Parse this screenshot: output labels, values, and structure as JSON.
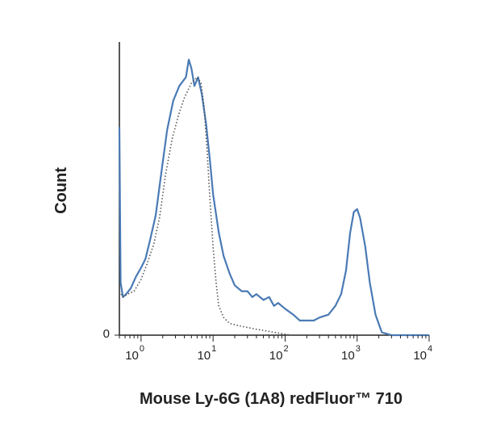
{
  "chart_data": {
    "type": "line",
    "xlabel": "Mouse Ly-6G (1A8) redFluor™ 710",
    "ylabel": "Count",
    "x_scale": "log",
    "xlim": [
      0.5,
      10000
    ],
    "ylim": [
      0,
      100
    ],
    "x_ticks": [
      {
        "base": "10",
        "exp": "0",
        "value": 1
      },
      {
        "base": "10",
        "exp": "1",
        "value": 10
      },
      {
        "base": "10",
        "exp": "2",
        "value": 100
      },
      {
        "base": "10",
        "exp": "3",
        "value": 1000
      },
      {
        "base": "10",
        "exp": "4",
        "value": 10000
      }
    ],
    "y_ticks": [
      {
        "label": "0",
        "value": 0
      }
    ],
    "series": [
      {
        "style": "solid",
        "color": "#4a7ab5",
        "points": [
          [
            0.5,
            71
          ],
          [
            0.52,
            18
          ],
          [
            0.56,
            13
          ],
          [
            0.62,
            14
          ],
          [
            0.72,
            16
          ],
          [
            0.85,
            20
          ],
          [
            1.0,
            23
          ],
          [
            1.15,
            26
          ],
          [
            1.35,
            33
          ],
          [
            1.6,
            41
          ],
          [
            1.9,
            55
          ],
          [
            2.3,
            70
          ],
          [
            2.8,
            80
          ],
          [
            3.4,
            85
          ],
          [
            4.2,
            88
          ],
          [
            4.6,
            94
          ],
          [
            5.0,
            91
          ],
          [
            5.5,
            85
          ],
          [
            6.2,
            88
          ],
          [
            7.0,
            82
          ],
          [
            8.0,
            72
          ],
          [
            9.0,
            60
          ],
          [
            10.0,
            48
          ],
          [
            12.0,
            35
          ],
          [
            14.0,
            27
          ],
          [
            17.0,
            21
          ],
          [
            20.0,
            17
          ],
          [
            25.0,
            15
          ],
          [
            30.0,
            15
          ],
          [
            35.0,
            13
          ],
          [
            40.0,
            14
          ],
          [
            50.0,
            12
          ],
          [
            60.0,
            13
          ],
          [
            70.0,
            10
          ],
          [
            80.0,
            11
          ],
          [
            100,
            9
          ],
          [
            130,
            7
          ],
          [
            160,
            5
          ],
          [
            200,
            5
          ],
          [
            250,
            5
          ],
          [
            300,
            6
          ],
          [
            400,
            7
          ],
          [
            500,
            10
          ],
          [
            600,
            14
          ],
          [
            700,
            22
          ],
          [
            800,
            35
          ],
          [
            900,
            42
          ],
          [
            1000,
            43
          ],
          [
            1100,
            40
          ],
          [
            1300,
            30
          ],
          [
            1500,
            18
          ],
          [
            1800,
            7
          ],
          [
            2200,
            1
          ],
          [
            3000,
            0
          ],
          [
            5000,
            0
          ],
          [
            10000,
            0
          ]
        ]
      },
      {
        "style": "dotted",
        "color": "#555555",
        "points": [
          [
            0.5,
            15
          ],
          [
            0.56,
            13
          ],
          [
            0.65,
            14
          ],
          [
            0.8,
            15
          ],
          [
            1.0,
            19
          ],
          [
            1.2,
            24
          ],
          [
            1.5,
            31
          ],
          [
            1.8,
            40
          ],
          [
            2.2,
            55
          ],
          [
            2.7,
            67
          ],
          [
            3.3,
            75
          ],
          [
            4.0,
            81
          ],
          [
            5.0,
            86
          ],
          [
            6.0,
            88
          ],
          [
            6.8,
            86
          ],
          [
            7.5,
            78
          ],
          [
            8.2,
            64
          ],
          [
            9.0,
            47
          ],
          [
            10.0,
            30
          ],
          [
            11.0,
            18
          ],
          [
            12.0,
            10
          ],
          [
            14.0,
            6
          ],
          [
            17.0,
            4
          ],
          [
            25.0,
            3
          ],
          [
            40.0,
            2
          ],
          [
            70.0,
            1
          ],
          [
            120,
            0
          ],
          [
            300,
            0
          ]
        ]
      }
    ]
  }
}
